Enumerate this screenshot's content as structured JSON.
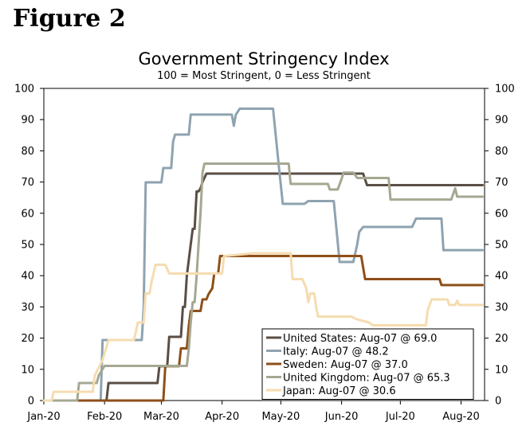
{
  "figure_label": "Figure 2",
  "chart_data": {
    "type": "line",
    "title": "Government Stringency Index",
    "subtitle": "100 = Most Stringent, 0 = Less Stringent",
    "xlabel": "",
    "ylabel": "",
    "x_range": [
      0,
      225
    ],
    "ylim": [
      0,
      100
    ],
    "y_ticks": [
      "0",
      "10",
      "20",
      "30",
      "40",
      "50",
      "60",
      "70",
      "80",
      "90",
      "100"
    ],
    "x_ticks": [
      {
        "label": "Jan-20",
        "day": 0
      },
      {
        "label": "Feb-20",
        "day": 31
      },
      {
        "label": "Mar-20",
        "day": 60
      },
      {
        "label": "Apr-20",
        "day": 91
      },
      {
        "label": "May-20",
        "day": 121
      },
      {
        "label": "Jun-20",
        "day": 152
      },
      {
        "label": "Jul-20",
        "day": 182
      },
      {
        "label": "Aug-20",
        "day": 213
      }
    ],
    "legend": {
      "placement": "bottom-right"
    },
    "series": [
      {
        "name": "United States",
        "legend_label": "United States: Aug-07 @ 69.0",
        "color": "#5a4e45",
        "points": [
          [
            0,
            0
          ],
          [
            32,
            0
          ],
          [
            33,
            5.6
          ],
          [
            58,
            5.6
          ],
          [
            59,
            11
          ],
          [
            63,
            11
          ],
          [
            64,
            20.4
          ],
          [
            70,
            20.4
          ],
          [
            71,
            30
          ],
          [
            72,
            30
          ],
          [
            73,
            40
          ],
          [
            75,
            50
          ],
          [
            76,
            55
          ],
          [
            77,
            55
          ],
          [
            78,
            67
          ],
          [
            79,
            67
          ],
          [
            80,
            68
          ],
          [
            81,
            70
          ],
          [
            83,
            72.7
          ],
          [
            163,
            72.7
          ],
          [
            165,
            69
          ],
          [
            224,
            69
          ]
        ]
      },
      {
        "name": "Italy",
        "legend_label": "Italy: Aug-07 @ 48.2",
        "color": "#8ea3b0",
        "points": [
          [
            0,
            0
          ],
          [
            29,
            0
          ],
          [
            30,
            19.4
          ],
          [
            50,
            19.4
          ],
          [
            51,
            30
          ],
          [
            52,
            69.9
          ],
          [
            60,
            69.9
          ],
          [
            61,
            74.5
          ],
          [
            65,
            74.5
          ],
          [
            66,
            83
          ],
          [
            67,
            85.2
          ],
          [
            74,
            85.2
          ],
          [
            75,
            91.6
          ],
          [
            96,
            91.6
          ],
          [
            97,
            88
          ],
          [
            98,
            91.6
          ],
          [
            100,
            93.5
          ],
          [
            117,
            93.5
          ],
          [
            120,
            75
          ],
          [
            122,
            63
          ],
          [
            133,
            63
          ],
          [
            135,
            63.9
          ],
          [
            148,
            63.9
          ],
          [
            151,
            44.4
          ],
          [
            158,
            44.4
          ],
          [
            160,
            50
          ],
          [
            161,
            54
          ],
          [
            163,
            55.6
          ],
          [
            188,
            55.6
          ],
          [
            190,
            58.3
          ],
          [
            203,
            58.3
          ],
          [
            204,
            48.2
          ],
          [
            224,
            48.2
          ]
        ]
      },
      {
        "name": "Sweden",
        "legend_label": "Sweden: Aug-07 @ 37.0",
        "color": "#8e4f19",
        "points": [
          [
            0,
            0
          ],
          [
            61,
            0
          ],
          [
            62,
            11
          ],
          [
            69,
            11
          ],
          [
            70,
            16.7
          ],
          [
            73,
            16.7
          ],
          [
            74,
            24
          ],
          [
            75,
            28.7
          ],
          [
            80,
            28.7
          ],
          [
            81,
            32.4
          ],
          [
            83,
            32.4
          ],
          [
            84,
            34
          ],
          [
            86,
            36
          ],
          [
            87,
            40.7
          ],
          [
            89,
            40.7
          ],
          [
            90,
            46.3
          ],
          [
            162,
            46.3
          ],
          [
            164,
            38.9
          ],
          [
            202,
            38.9
          ],
          [
            203,
            37
          ],
          [
            224,
            37
          ]
        ]
      },
      {
        "name": "United Kingdom",
        "legend_label": "United Kingdom: Aug-07 @ 65.3",
        "color": "#a5a891",
        "points": [
          [
            0,
            0
          ],
          [
            17,
            0
          ],
          [
            18,
            5.6
          ],
          [
            27,
            5.6
          ],
          [
            28,
            8
          ],
          [
            31,
            11.1
          ],
          [
            73,
            11.1
          ],
          [
            74,
            16.7
          ],
          [
            75,
            25
          ],
          [
            76,
            31.5
          ],
          [
            77,
            31.5
          ],
          [
            78,
            40
          ],
          [
            80,
            60
          ],
          [
            81,
            73
          ],
          [
            82,
            75.9
          ],
          [
            125,
            75.9
          ],
          [
            126,
            69.4
          ],
          [
            145,
            69.4
          ],
          [
            146,
            67.6
          ],
          [
            150,
            67.6
          ],
          [
            152,
            71
          ],
          [
            153,
            73
          ],
          [
            158,
            73
          ],
          [
            160,
            71.3
          ],
          [
            176,
            71.3
          ],
          [
            177,
            64.4
          ],
          [
            208,
            64.4
          ],
          [
            210,
            68
          ],
          [
            211,
            65.3
          ],
          [
            224,
            65.3
          ]
        ]
      },
      {
        "name": "Japan",
        "legend_label": "Japan: Aug-07 @ 30.6",
        "color": "#f5dcb0",
        "points": [
          [
            0,
            0
          ],
          [
            4,
            0
          ],
          [
            5,
            2.8
          ],
          [
            25,
            2.8
          ],
          [
            26,
            8
          ],
          [
            30,
            13
          ],
          [
            33,
            19.4
          ],
          [
            46,
            19.4
          ],
          [
            48,
            25
          ],
          [
            51,
            25
          ],
          [
            52,
            34.3
          ],
          [
            54,
            34.3
          ],
          [
            55,
            38
          ],
          [
            57,
            43.5
          ],
          [
            62,
            43.5
          ],
          [
            64,
            40.7
          ],
          [
            91,
            40.7
          ],
          [
            92,
            46.3
          ],
          [
            107,
            47.2
          ],
          [
            126,
            47.2
          ],
          [
            127,
            38.9
          ],
          [
            132,
            38.9
          ],
          [
            134,
            36
          ],
          [
            135,
            31.5
          ],
          [
            136,
            34.3
          ],
          [
            138,
            34.3
          ],
          [
            139,
            30
          ],
          [
            140,
            26.9
          ],
          [
            157,
            26.9
          ],
          [
            160,
            26
          ],
          [
            166,
            25
          ],
          [
            168,
            24.1
          ],
          [
            195,
            24.1
          ],
          [
            196,
            29
          ],
          [
            198,
            32.4
          ],
          [
            206,
            32.4
          ],
          [
            207,
            30.6
          ],
          [
            210,
            30.6
          ],
          [
            211,
            32
          ],
          [
            212,
            30.6
          ],
          [
            224,
            30.6
          ]
        ]
      }
    ]
  }
}
